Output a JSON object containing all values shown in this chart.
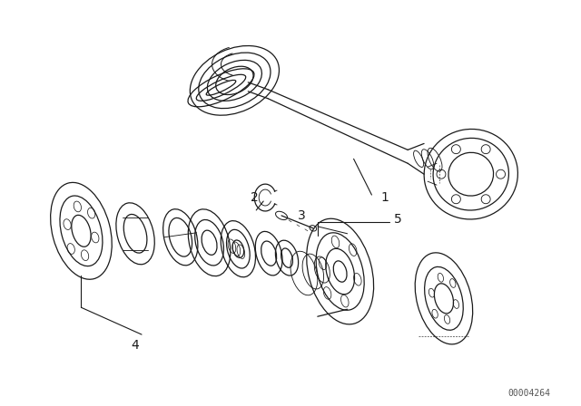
{
  "background_color": "#ffffff",
  "line_color": "#1a1a1a",
  "part_number_text": "00004264",
  "label_fontsize": 10,
  "figsize": [
    6.4,
    4.48
  ],
  "dpi": 100
}
